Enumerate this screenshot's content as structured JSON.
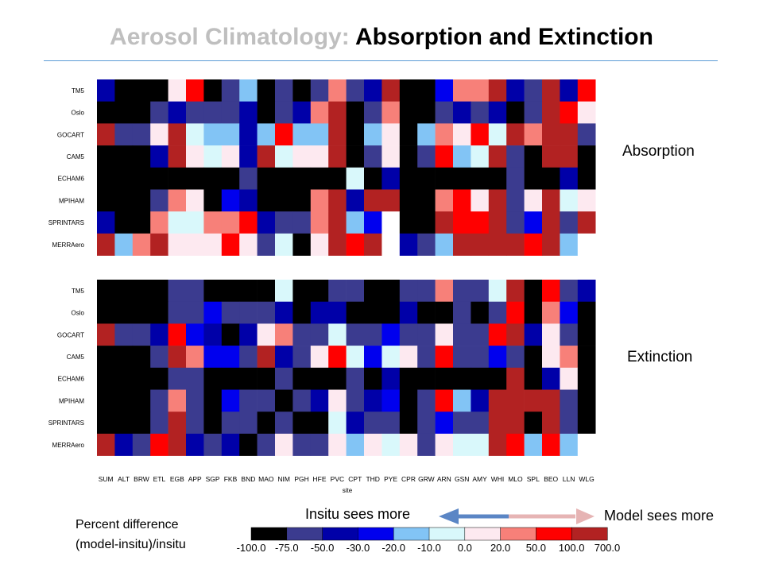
{
  "slide": {
    "title_part1": "Aerosol Climatology:",
    "title_part2": "Absorption and Extinction"
  },
  "labels": {
    "absorption": "Absorption",
    "extinction": "Extinction",
    "insitu_arrow": "Insitu sees more",
    "model_arrow": "Model sees more",
    "percent_line1": "Percent difference",
    "percent_line2": "(model-insitu)/insitu"
  },
  "colors": {
    "rule": "#5b9bd5",
    "arrow_left": "#5b86c5",
    "arrow_right": "#e6b4b4"
  },
  "chart_data": [
    {
      "type": "heatmap",
      "title": "",
      "xlabel": "site",
      "x": [
        "SUM",
        "ALT",
        "BRW",
        "ETL",
        "EGB",
        "APP",
        "SGP",
        "FKB",
        "BND",
        "MAO",
        "NIM",
        "PGH",
        "HFE",
        "PVC",
        "CPT",
        "THD",
        "PYE",
        "CPR",
        "GRW",
        "ARN",
        "GSN",
        "AMY",
        "WHI",
        "MLO",
        "SPL",
        "BEO",
        "LLN",
        "WLG"
      ],
      "y": [
        "TM5",
        "Oslo",
        "GOCART",
        "CAM5",
        "ECHAM6",
        "MPIHAM",
        "SPRINTARS",
        "MERRAero"
      ],
      "value_categories": [
        {
          "label": "-100.0",
          "color": "#000000"
        },
        {
          "label": "-75.0",
          "color": "#3b3b8f"
        },
        {
          "label": "-50.0",
          "color": "#0000a8"
        },
        {
          "label": "-30.0",
          "color": "#0000ee"
        },
        {
          "label": "-20.0",
          "color": "#82c4f5"
        },
        {
          "label": "-10.0",
          "color": "#d9f8fb"
        },
        {
          "label": "0.0",
          "color": "#fde9f0"
        },
        {
          "label": "20.0",
          "color": "#f78079"
        },
        {
          "label": "50.0",
          "color": "#ff0000"
        },
        {
          "label": "100.0",
          "color": "#b22222"
        },
        {
          "label": "700.0",
          "color": "#b22222"
        }
      ],
      "values": [
        [
          2,
          0,
          0,
          0,
          6,
          8,
          0,
          1,
          4,
          0,
          1,
          0,
          1,
          7,
          1,
          2,
          9,
          0,
          0,
          3,
          7,
          7,
          9,
          2,
          1,
          9,
          2,
          8
        ],
        [
          0,
          0,
          0,
          1,
          2,
          1,
          1,
          1,
          2,
          0,
          1,
          2,
          7,
          9,
          0,
          1,
          7,
          0,
          0,
          1,
          2,
          1,
          2,
          0,
          1,
          9,
          8,
          6
        ],
        [
          9,
          1,
          1,
          6,
          9,
          5,
          4,
          4,
          2,
          4,
          8,
          4,
          4,
          9,
          0,
          4,
          6,
          0,
          4,
          7,
          6,
          8,
          5,
          9,
          7,
          9,
          9,
          1
        ],
        [
          0,
          0,
          0,
          2,
          9,
          6,
          5,
          6,
          2,
          9,
          5,
          6,
          6,
          9,
          0,
          1,
          6,
          0,
          1,
          8,
          4,
          5,
          9,
          1,
          0,
          9,
          9,
          0
        ],
        [
          0,
          0,
          0,
          0,
          0,
          0,
          0,
          0,
          1,
          0,
          0,
          0,
          0,
          0,
          5,
          0,
          2,
          0,
          0,
          0,
          0,
          0,
          0,
          1,
          0,
          0,
          2,
          0
        ],
        [
          0,
          0,
          0,
          1,
          7,
          6,
          0,
          3,
          2,
          0,
          0,
          0,
          7,
          9,
          2,
          9,
          9,
          0,
          0,
          7,
          8,
          6,
          9,
          1,
          6,
          9,
          5,
          6
        ],
        [
          2,
          0,
          0,
          7,
          5,
          5,
          7,
          7,
          8,
          2,
          1,
          1,
          7,
          9,
          4,
          3,
          null,
          0,
          0,
          9,
          8,
          8,
          9,
          1,
          3,
          9,
          1,
          9
        ],
        [
          9,
          4,
          7,
          9,
          6,
          6,
          6,
          8,
          6,
          1,
          5,
          0,
          6,
          9,
          8,
          9,
          null,
          2,
          1,
          4,
          9,
          9,
          9,
          9,
          8,
          9,
          4,
          null
        ]
      ]
    },
    {
      "type": "heatmap",
      "title": "",
      "xlabel": "site",
      "x": [
        "SUM",
        "ALT",
        "BRW",
        "ETL",
        "EGB",
        "APP",
        "SGP",
        "FKB",
        "BND",
        "MAO",
        "NIM",
        "PGH",
        "HFE",
        "PVC",
        "CPT",
        "THD",
        "PYE",
        "CPR",
        "GRW",
        "ARN",
        "GSN",
        "AMY",
        "WHI",
        "MLO",
        "SPL",
        "BEO",
        "LLN",
        "WLG"
      ],
      "y": [
        "TM5",
        "Oslo",
        "GOCART",
        "CAM5",
        "ECHAM6",
        "MPIHAM",
        "SPRINTARS",
        "MERRAero"
      ],
      "values": [
        [
          0,
          0,
          0,
          0,
          1,
          1,
          0,
          0,
          0,
          0,
          5,
          0,
          0,
          1,
          1,
          0,
          0,
          1,
          1,
          7,
          1,
          1,
          5,
          9,
          0,
          8,
          1,
          2
        ],
        [
          0,
          0,
          0,
          0,
          1,
          1,
          3,
          1,
          1,
          1,
          2,
          0,
          2,
          2,
          0,
          0,
          0,
          2,
          0,
          0,
          1,
          0,
          1,
          8,
          0,
          7,
          3,
          0
        ],
        [
          9,
          1,
          1,
          2,
          8,
          3,
          2,
          0,
          2,
          6,
          7,
          1,
          1,
          5,
          1,
          1,
          3,
          1,
          1,
          6,
          1,
          1,
          8,
          9,
          2,
          6,
          1,
          0
        ],
        [
          0,
          0,
          0,
          1,
          9,
          7,
          3,
          3,
          1,
          9,
          2,
          1,
          6,
          8,
          5,
          3,
          5,
          6,
          1,
          8,
          1,
          1,
          3,
          1,
          0,
          6,
          7,
          0
        ],
        [
          0,
          0,
          0,
          0,
          1,
          1,
          0,
          0,
          0,
          0,
          1,
          0,
          0,
          0,
          1,
          0,
          2,
          0,
          0,
          0,
          0,
          0,
          0,
          9,
          0,
          2,
          6,
          0
        ],
        [
          0,
          0,
          0,
          1,
          7,
          1,
          0,
          3,
          1,
          1,
          0,
          1,
          2,
          6,
          1,
          2,
          3,
          0,
          1,
          8,
          4,
          2,
          9,
          9,
          9,
          9,
          1,
          0
        ],
        [
          0,
          0,
          0,
          1,
          9,
          1,
          0,
          1,
          1,
          0,
          1,
          0,
          0,
          5,
          2,
          1,
          1,
          0,
          1,
          3,
          1,
          1,
          9,
          9,
          0,
          9,
          1,
          0
        ],
        [
          9,
          2,
          1,
          8,
          9,
          2,
          1,
          2,
          0,
          1,
          6,
          1,
          1,
          6,
          4,
          6,
          5,
          6,
          1,
          6,
          5,
          5,
          9,
          8,
          4,
          8,
          4,
          null
        ]
      ]
    }
  ]
}
